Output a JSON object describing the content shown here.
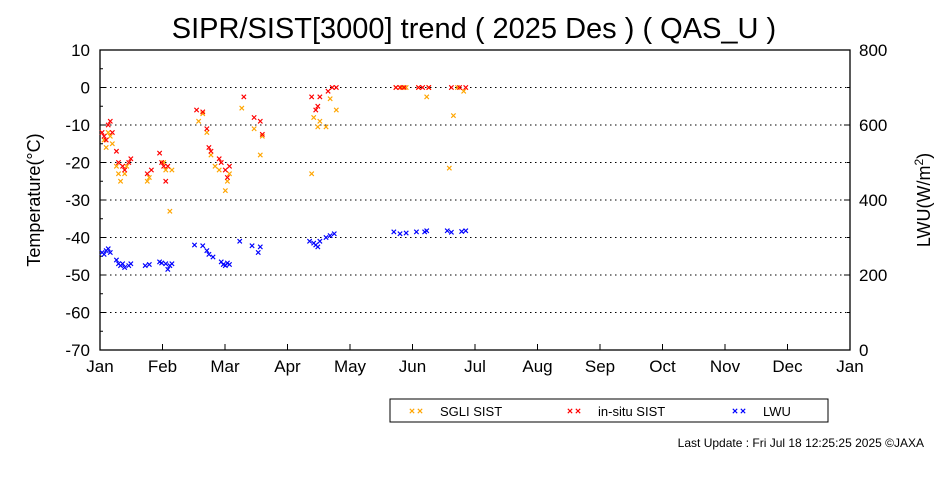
{
  "chart_data": {
    "type": "scatter",
    "title": "SIPR/SIST[3000] trend ( 2025 Des ) ( QAS_U )",
    "ylabel": "Temperature(°C)",
    "y2label_main": "LWU(W/m",
    "y2label_sup": "2",
    "y2label_end": ")",
    "ylim": [
      -70,
      10
    ],
    "y2lim": [
      0,
      800
    ],
    "yticks": [
      "10",
      "0",
      "-10",
      "-20",
      "-30",
      "-40",
      "-50",
      "-60",
      "-70"
    ],
    "y2ticks": [
      "800",
      "600",
      "400",
      "200",
      "0"
    ],
    "xticks": [
      "Jan",
      "Feb",
      "Mar",
      "Apr",
      "May",
      "Jun",
      "Jul",
      "Aug",
      "Sep",
      "Oct",
      "Nov",
      "Dec",
      "Jan"
    ],
    "grid": "horizontal dotted",
    "legend_position": "bottom",
    "series": [
      {
        "name": "SGLI SIST",
        "color": "#ffa500",
        "axis": "left",
        "points": [
          [
            "2025-01-03",
            -14
          ],
          [
            "2025-01-04",
            -16
          ],
          [
            "2025-01-05",
            -12
          ],
          [
            "2025-01-06",
            -13
          ],
          [
            "2025-01-07",
            -15
          ],
          [
            "2025-01-09",
            -21
          ],
          [
            "2025-01-10",
            -23
          ],
          [
            "2025-01-11",
            -25
          ],
          [
            "2025-01-13",
            -23
          ],
          [
            "2025-01-14",
            -21
          ],
          [
            "2025-01-24",
            -25
          ],
          [
            "2025-01-25",
            -24
          ],
          [
            "2025-02-01",
            -20
          ],
          [
            "2025-02-02",
            -22
          ],
          [
            "2025-02-04",
            -33
          ],
          [
            "2025-02-05",
            -22
          ],
          [
            "2025-02-18",
            -9
          ],
          [
            "2025-02-20",
            -7
          ],
          [
            "2025-02-22",
            -12
          ],
          [
            "2025-02-24",
            -18
          ],
          [
            "2025-02-26",
            -21
          ],
          [
            "2025-02-28",
            -22
          ],
          [
            "2025-03-03",
            -27.5
          ],
          [
            "2025-03-04",
            -25
          ],
          [
            "2025-03-05",
            -23
          ],
          [
            "2025-03-11",
            -5.5
          ],
          [
            "2025-03-17",
            -11
          ],
          [
            "2025-03-20",
            -18
          ],
          [
            "2025-03-21",
            -13
          ],
          [
            "2025-04-14",
            -23
          ],
          [
            "2025-04-15",
            -8
          ],
          [
            "2025-04-17",
            -10.5
          ],
          [
            "2025-04-18",
            -9
          ],
          [
            "2025-04-21",
            -10.5
          ],
          [
            "2025-04-23",
            -3
          ],
          [
            "2025-04-26",
            -6
          ],
          [
            "2025-05-25",
            0
          ],
          [
            "2025-05-28",
            0
          ],
          [
            "2025-05-30",
            0
          ],
          [
            "2025-06-05",
            0
          ],
          [
            "2025-06-09",
            -2.5
          ],
          [
            "2025-06-10",
            0
          ],
          [
            "2025-06-20",
            -21.5
          ],
          [
            "2025-06-22",
            -7.5
          ],
          [
            "2025-06-24",
            0
          ],
          [
            "2025-06-27",
            -1
          ]
        ]
      },
      {
        "name": "in-situ SIST",
        "color": "#ff0000",
        "axis": "left",
        "points": [
          [
            "2025-01-02",
            -12
          ],
          [
            "2025-01-03",
            -13
          ],
          [
            "2025-01-04",
            -14
          ],
          [
            "2025-01-05",
            -10
          ],
          [
            "2025-01-06",
            -9
          ],
          [
            "2025-01-07",
            -12
          ],
          [
            "2025-01-09",
            -17
          ],
          [
            "2025-01-10",
            -20
          ],
          [
            "2025-01-12",
            -21
          ],
          [
            "2025-01-13",
            -22
          ],
          [
            "2025-01-15",
            -20
          ],
          [
            "2025-01-16",
            -19
          ],
          [
            "2025-01-24",
            -23
          ],
          [
            "2025-01-26",
            -22
          ],
          [
            "2025-01-30",
            -17.5
          ],
          [
            "2025-01-31",
            -20
          ],
          [
            "2025-02-01",
            -21
          ],
          [
            "2025-02-02",
            -25
          ],
          [
            "2025-02-03",
            -21
          ],
          [
            "2025-02-17",
            -6
          ],
          [
            "2025-02-20",
            -6.5
          ],
          [
            "2025-02-22",
            -11
          ],
          [
            "2025-02-23",
            -16
          ],
          [
            "2025-02-24",
            -17
          ],
          [
            "2025-02-28",
            -19
          ],
          [
            "2025-03-01",
            -20
          ],
          [
            "2025-03-03",
            -22
          ],
          [
            "2025-03-04",
            -24
          ],
          [
            "2025-03-05",
            -21
          ],
          [
            "2025-03-12",
            -2.5
          ],
          [
            "2025-03-17",
            -8
          ],
          [
            "2025-03-20",
            -9
          ],
          [
            "2025-03-21",
            -12.5
          ],
          [
            "2025-04-14",
            -2.5
          ],
          [
            "2025-04-16",
            -6
          ],
          [
            "2025-04-17",
            -5
          ],
          [
            "2025-04-18",
            -2.5
          ],
          [
            "2025-04-22",
            -1
          ],
          [
            "2025-04-24",
            0
          ],
          [
            "2025-04-26",
            0
          ],
          [
            "2025-05-25",
            0
          ],
          [
            "2025-05-27",
            0
          ],
          [
            "2025-05-29",
            0
          ],
          [
            "2025-06-05",
            0
          ],
          [
            "2025-06-07",
            0
          ],
          [
            "2025-06-10",
            0
          ],
          [
            "2025-06-21",
            0
          ],
          [
            "2025-06-25",
            0
          ],
          [
            "2025-06-28",
            0
          ]
        ]
      },
      {
        "name": "LWU",
        "color": "#0000ff",
        "axis": "right",
        "points": [
          [
            "2025-01-02",
            260
          ],
          [
            "2025-01-03",
            255
          ],
          [
            "2025-01-04",
            265
          ],
          [
            "2025-01-05",
            270
          ],
          [
            "2025-01-06",
            260
          ],
          [
            "2025-01-09",
            240
          ],
          [
            "2025-01-10",
            230
          ],
          [
            "2025-01-11",
            225
          ],
          [
            "2025-01-12",
            230
          ],
          [
            "2025-01-13",
            220
          ],
          [
            "2025-01-15",
            225
          ],
          [
            "2025-01-16",
            230
          ],
          [
            "2025-01-23",
            225
          ],
          [
            "2025-01-25",
            228
          ],
          [
            "2025-01-30",
            235
          ],
          [
            "2025-01-31",
            232
          ],
          [
            "2025-02-02",
            230
          ],
          [
            "2025-02-03",
            215
          ],
          [
            "2025-02-04",
            225
          ],
          [
            "2025-02-05",
            230
          ],
          [
            "2025-02-16",
            280
          ],
          [
            "2025-02-20",
            278
          ],
          [
            "2025-02-22",
            265
          ],
          [
            "2025-02-23",
            255
          ],
          [
            "2025-02-25",
            248
          ],
          [
            "2025-03-01",
            235
          ],
          [
            "2025-03-02",
            228
          ],
          [
            "2025-03-03",
            225
          ],
          [
            "2025-03-04",
            232
          ],
          [
            "2025-03-05",
            228
          ],
          [
            "2025-03-10",
            290
          ],
          [
            "2025-03-16",
            278
          ],
          [
            "2025-03-19",
            260
          ],
          [
            "2025-03-20",
            275
          ],
          [
            "2025-04-13",
            290
          ],
          [
            "2025-04-15",
            285
          ],
          [
            "2025-04-16",
            280
          ],
          [
            "2025-04-17",
            275
          ],
          [
            "2025-04-18",
            290
          ],
          [
            "2025-04-21",
            300
          ],
          [
            "2025-04-23",
            305
          ],
          [
            "2025-04-25",
            310
          ],
          [
            "2025-05-24",
            315
          ],
          [
            "2025-05-27",
            310
          ],
          [
            "2025-05-30",
            312
          ],
          [
            "2025-06-04",
            315
          ],
          [
            "2025-06-08",
            315
          ],
          [
            "2025-06-09",
            318
          ],
          [
            "2025-06-19",
            318
          ],
          [
            "2025-06-21",
            314
          ],
          [
            "2025-06-26",
            316
          ],
          [
            "2025-06-28",
            318
          ]
        ]
      }
    ]
  },
  "footer": {
    "last_update": "Last Update : Fri Jul 18 12:25:25 2025  ©JAXA"
  }
}
